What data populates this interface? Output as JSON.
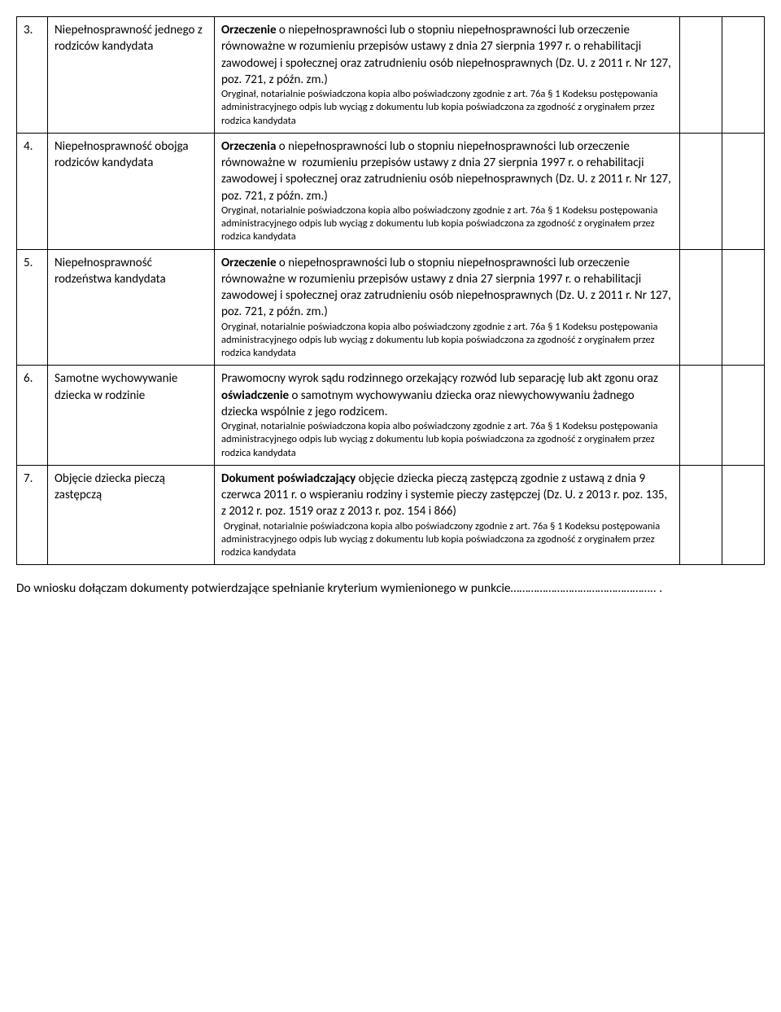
{
  "rows": [
    {
      "num": "3.",
      "criterion": "Niepełnosprawność jednego z rodziców kandydata",
      "desc_html": "<b>Orzeczenie</b> o niepełnosprawności lub o stopniu niepełnosprawności lub orzeczenie równoważne w rozumieniu przepisów ustawy z dnia 27 sierpnia 1997 r. o rehabilitacji zawodowej i społecznej oraz zatrudnieniu osób niepełnosprawnych (Dz. U. z 2011 r. Nr 127, poz. 721, z późn. zm.)",
      "note": "Oryginał, notarialnie poświadczona kopia albo poświadczony zgodnie z art. 76a § 1 Kodeksu postępowania administracyjnego odpis lub wyciąg z dokumentu lub kopia poświadczona za zgodność z oryginałem przez rodzica kandydata"
    },
    {
      "num": "4.",
      "criterion": "Niepełnosprawność obojga rodziców kandydata",
      "desc_html": "<b>Orzeczenia</b> o niepełnosprawności lub o stopniu niepełnosprawności lub orzeczenie równoważne w &nbsp;rozumieniu przepisów ustawy z dnia 27 sierpnia 1997 r. o rehabilitacji zawodowej i społecznej oraz zatrudnieniu osób niepełnosprawnych (Dz. U. z 2011 r. Nr 127, poz. 721, z późn. zm.)",
      "note": "Oryginał, notarialnie poświadczona kopia albo poświadczony zgodnie z art. 76a § 1 Kodeksu postępowania administracyjnego odpis lub wyciąg z dokumentu lub kopia poświadczona za zgodność z oryginałem przez rodzica kandydata"
    },
    {
      "num": "5.",
      "criterion": "Niepełnosprawność rodzeństwa kandydata",
      "desc_html": "<b>Orzeczenie</b> o niepełnosprawności lub o stopniu niepełnosprawności lub orzeczenie równoważne w rozumieniu przepisów ustawy z dnia 27 sierpnia 1997 r. o rehabilitacji zawodowej i społecznej oraz zatrudnieniu osób niepełnosprawnych (Dz. U. z 2011 r. Nr 127, poz. 721, z późn. zm.)",
      "note": "Oryginał, notarialnie poświadczona kopia albo poświadczony zgodnie z art. 76a § 1 Kodeksu postępowania administracyjnego odpis lub wyciąg z dokumentu lub kopia poświadczona za zgodność z oryginałem przez rodzica kandydata"
    },
    {
      "num": "6.",
      "criterion": "Samotne wychowywanie dziecka w rodzinie",
      "desc_html": "Prawomocny wyrok sądu rodzinnego orzekający rozwód lub separację lub akt zgonu oraz <b>oświadczenie</b> o samotnym wychowywaniu dziecka oraz niewychowywaniu żadnego dziecka wspólnie z jego rodzicem.",
      "note": "Oryginał, notarialnie poświadczona kopia albo poświadczony zgodnie z art. 76a § 1 Kodeksu postępowania administracyjnego odpis lub wyciąg z dokumentu lub kopia poświadczona za zgodność z oryginałem przez rodzica kandydata"
    },
    {
      "num": "7.",
      "criterion": "Objęcie dziecka pieczą zastępczą",
      "desc_html": "<b>Dokument poświadczający</b> objęcie dziecka pieczą zastępczą zgodnie z ustawą z dnia 9 czerwca 2011 r. o wspieraniu rodziny i systemie pieczy zastępczej (Dz. U. z 2013 r. poz. 135, z 2012 r. poz. 1519 oraz z 2013 r. poz. 154 i 866)",
      "note": "&nbsp;Oryginał, notarialnie poświadczona kopia albo poświadczony zgodnie z art. 76a § 1 Kodeksu postępowania administracyjnego odpis lub wyciąg z dokumentu lub kopia poświadczona za zgodność z oryginałem przez rodzica kandydata"
    }
  ],
  "footer": "Do wniosku dołączam dokumenty potwierdzające spełnianie kryterium wymienionego w punkcie………………………………………….. ."
}
